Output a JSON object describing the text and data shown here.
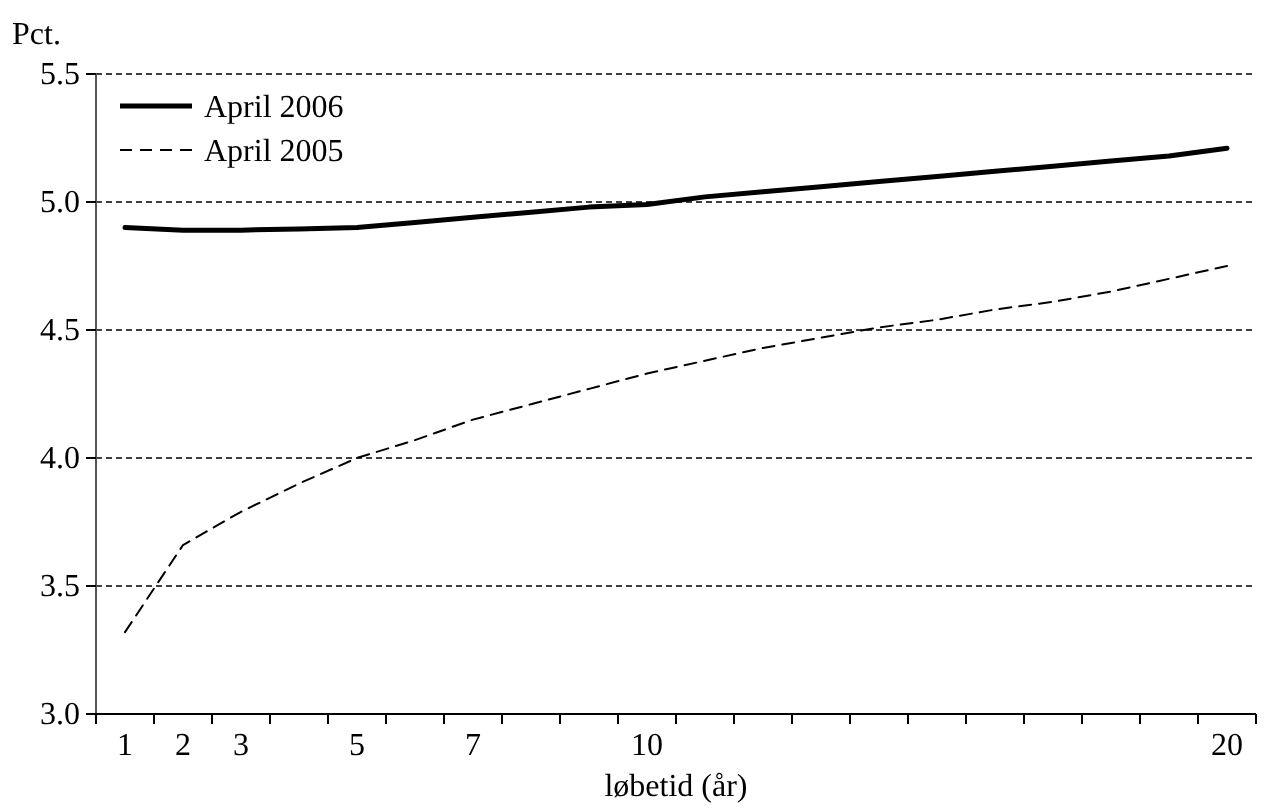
{
  "chart_data": {
    "type": "line",
    "xlabel": "løbetid (år)",
    "ylabel": "Pct.",
    "categories": [
      "1",
      "2",
      "3",
      null,
      "5",
      null,
      "7",
      null,
      null,
      "10",
      null,
      null,
      null,
      null,
      null,
      null,
      null,
      null,
      null,
      "20"
    ],
    "series": [
      {
        "name": "April 2006",
        "color": "#000000",
        "line_style": "solid",
        "values": [
          4.9,
          4.89,
          4.89,
          4.895,
          4.9,
          4.92,
          4.94,
          4.96,
          4.98,
          4.99,
          5.02,
          5.04,
          5.06,
          5.08,
          5.1,
          5.12,
          5.14,
          5.16,
          5.18,
          5.21
        ]
      },
      {
        "name": "April 2005",
        "color": "#000000",
        "line_style": "dashed",
        "values": [
          3.32,
          3.66,
          3.79,
          3.9,
          4.0,
          4.07,
          4.15,
          4.21,
          4.27,
          4.33,
          4.38,
          4.43,
          4.47,
          4.51,
          4.54,
          4.58,
          4.61,
          4.65,
          4.7,
          4.75
        ]
      }
    ],
    "ylim": [
      3.0,
      5.5
    ],
    "yticks": [
      {
        "value": 3.0,
        "label": "3.0"
      },
      {
        "value": 3.5,
        "label": "3.5"
      },
      {
        "value": 4.0,
        "label": "4.0"
      },
      {
        "value": 4.5,
        "label": "4.5"
      },
      {
        "value": 5.0,
        "label": "5.0"
      },
      {
        "value": 5.5,
        "label": "5.5"
      }
    ],
    "grid": "y",
    "legend": "top left",
    "marker": "none"
  }
}
